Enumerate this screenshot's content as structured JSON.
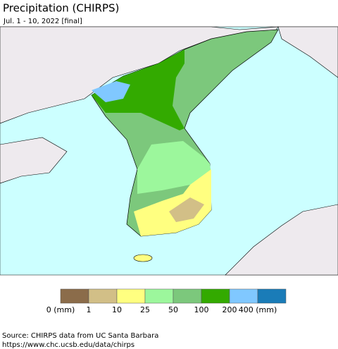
{
  "header": {
    "title": "Precipitation (CHIRPS)",
    "subtitle": "Jul. 1 - 10, 2022 [final]"
  },
  "legend": {
    "colors": [
      "#8b6c4a",
      "#d2bf87",
      "#ffff80",
      "#9cf79c",
      "#7cc87c",
      "#33aa00",
      "#80c8ff",
      "#1a7cb8"
    ],
    "labels": [
      "0 (mm)",
      "1",
      "10",
      "25",
      "50",
      "100",
      "200",
      "400 (mm)"
    ]
  },
  "footer": {
    "source": "Source: CHIRPS data from UC Santa Barbara",
    "url": "https://www.chc.ucsb.edu/data/chirps"
  }
}
